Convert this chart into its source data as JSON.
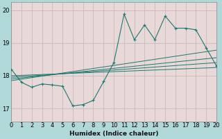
{
  "xlabel": "Humidex (Indice chaleur)",
  "xlim": [
    0,
    20
  ],
  "ylim": [
    16.6,
    20.25
  ],
  "yticks": [
    17,
    18,
    19,
    20
  ],
  "xticks": [
    0,
    1,
    2,
    3,
    4,
    5,
    6,
    7,
    8,
    9,
    10,
    11,
    12,
    13,
    14,
    15,
    16,
    17,
    18,
    19,
    20
  ],
  "outer_bg": "#b0d8d8",
  "plot_bg": "#e8d8d8",
  "grid_color": "#c8b8b8",
  "line_color": "#1a7a6e",
  "main_line_x": [
    0,
    1,
    2,
    3,
    4,
    5,
    6,
    7,
    8,
    9,
    10,
    11,
    12,
    13,
    14,
    15,
    16,
    17,
    18,
    19,
    20
  ],
  "main_line_y": [
    18.2,
    17.8,
    17.65,
    17.75,
    17.72,
    17.68,
    17.08,
    17.12,
    17.25,
    17.82,
    18.4,
    19.88,
    19.1,
    19.55,
    19.1,
    19.82,
    19.45,
    19.45,
    19.4,
    18.85,
    18.3
  ],
  "reg_lines": [
    {
      "x": [
        0,
        20
      ],
      "y": [
        18.0,
        18.25
      ]
    },
    {
      "x": [
        0,
        20
      ],
      "y": [
        17.95,
        18.4
      ]
    },
    {
      "x": [
        0,
        20
      ],
      "y": [
        17.9,
        18.55
      ]
    },
    {
      "x": [
        0,
        20
      ],
      "y": [
        17.85,
        18.78
      ]
    }
  ]
}
